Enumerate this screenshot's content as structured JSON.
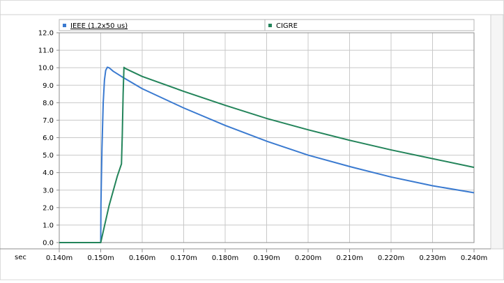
{
  "chart_data": {
    "type": "line",
    "x_unit_label": "sec",
    "xlim": [
      0.14,
      0.24
    ],
    "ylim": [
      0,
      12
    ],
    "x_ticks": [
      "0.140m",
      "0.150m",
      "0.160m",
      "0.170m",
      "0.180m",
      "0.190m",
      "0.200m",
      "0.210m",
      "0.220m",
      "0.230m",
      "0.240m"
    ],
    "y_ticks": [
      "0.0",
      "1.0",
      "2.0",
      "3.0",
      "4.0",
      "5.0",
      "6.0",
      "7.0",
      "8.0",
      "9.0",
      "10.0",
      "11.0",
      "12.0"
    ],
    "grid": true,
    "legend_position": "top",
    "series": [
      {
        "name": "IEEE (1.2x50 us)",
        "color": "#3a7ad0",
        "x": [
          0.14,
          0.15,
          0.15005,
          0.1503,
          0.1506,
          0.1509,
          0.1512,
          0.1516,
          0.152,
          0.1525,
          0.153,
          0.155,
          0.16,
          0.17,
          0.18,
          0.19,
          0.2,
          0.21,
          0.22,
          0.23,
          0.24
        ],
        "y": [
          0.0,
          0.0,
          2.2,
          5.4,
          8.0,
          9.3,
          9.85,
          10.03,
          10.0,
          9.9,
          9.8,
          9.5,
          8.8,
          7.7,
          6.7,
          5.8,
          5.0,
          4.35,
          3.75,
          3.25,
          2.85
        ]
      },
      {
        "name": "CIGRE",
        "color": "#23845a",
        "x": [
          0.14,
          0.15,
          0.152,
          0.154,
          0.155,
          0.1552,
          0.1554,
          0.1556,
          0.156,
          0.16,
          0.17,
          0.18,
          0.19,
          0.2,
          0.21,
          0.22,
          0.23,
          0.24
        ],
        "y": [
          0.0,
          0.0,
          2.1,
          3.8,
          4.5,
          6.2,
          8.5,
          10.02,
          9.95,
          9.5,
          8.65,
          7.85,
          7.1,
          6.45,
          5.85,
          5.3,
          4.8,
          4.3
        ]
      }
    ]
  },
  "colors": {
    "grid": "#c8c8c8",
    "frame": "#8c8c8c",
    "background": "#ffffff"
  }
}
